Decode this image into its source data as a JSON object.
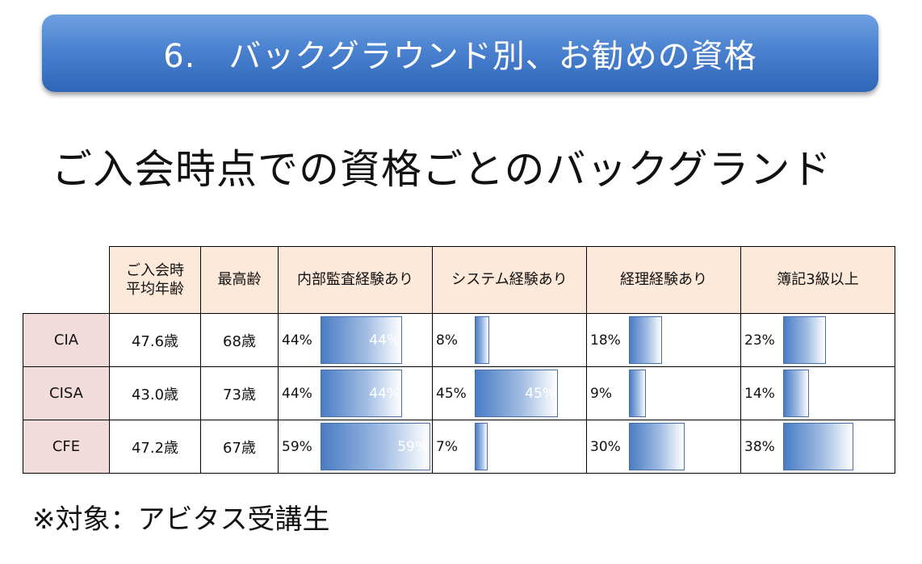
{
  "banner": {
    "title": "6.　バックグラウンド別、お勧めの資格"
  },
  "subtitle": "ご入会時点での資格ごとのバックグランド",
  "table": {
    "headers": {
      "avg_age": [
        "ご入会時",
        "平均年齢"
      ],
      "max_age": "最高齢",
      "audit": "内部監査経験あり",
      "system": "システム経験あり",
      "accounting": "経理経験あり",
      "bookkeeping": "簿記3級以上"
    },
    "rows": [
      {
        "name": "CIA",
        "avg_age": "47.6歳",
        "max_age": "68歳",
        "audit": "44%",
        "system": "8%",
        "accounting": "18%",
        "bookkeeping": "23%"
      },
      {
        "name": "CISA",
        "avg_age": "43.0歳",
        "max_age": "73歳",
        "audit": "44%",
        "system": "45%",
        "accounting": "9%",
        "bookkeeping": "14%"
      },
      {
        "name": "CFE",
        "avg_age": "47.2歳",
        "max_age": "67歳",
        "audit": "59%",
        "system": "7%",
        "accounting": "30%",
        "bookkeeping": "38%"
      }
    ]
  },
  "chart_data": {
    "type": "bar",
    "categories": [
      "CIA",
      "CISA",
      "CFE"
    ],
    "series": [
      {
        "name": "内部監査経験あり",
        "values": [
          44,
          44,
          59
        ]
      },
      {
        "name": "システム経験あり",
        "values": [
          8,
          45,
          7
        ]
      },
      {
        "name": "経理経験あり",
        "values": [
          18,
          9,
          30
        ]
      },
      {
        "name": "簿記3級以上",
        "values": [
          23,
          14,
          38
        ]
      }
    ],
    "ylim": [
      0,
      100
    ]
  },
  "footnote": "※対象：アビタス受講生"
}
